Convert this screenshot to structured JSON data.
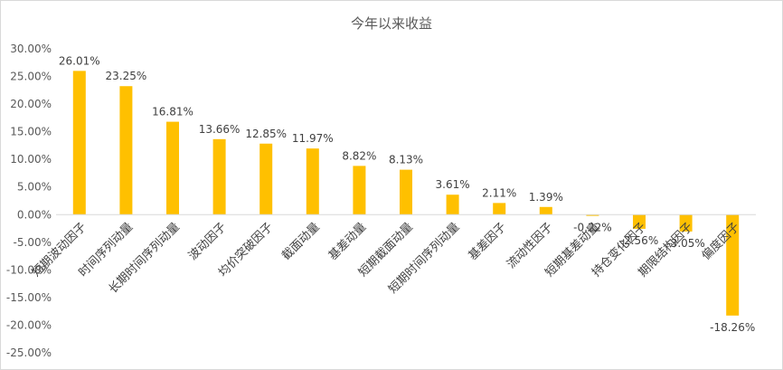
{
  "chart_data": {
    "type": "bar",
    "title": "今年以来收益",
    "categories": [
      "短期波动因子",
      "时间序列动量",
      "长期时间序列动量",
      "波动因子",
      "均价突破因子",
      "截面动量",
      "基差动量",
      "短期截面动量",
      "短期时间序列动量",
      "基差因子",
      "流动性因子",
      "短期基差动量",
      "持仓变化因子",
      "期限结构因子",
      "偏度因子"
    ],
    "values": [
      26.01,
      23.25,
      16.81,
      13.66,
      12.85,
      11.97,
      8.82,
      8.13,
      3.61,
      2.11,
      1.39,
      -0.22,
      -2.56,
      -3.05,
      -18.26
    ],
    "value_labels": [
      "26.01%",
      "23.25%",
      "16.81%",
      "13.66%",
      "12.85%",
      "11.97%",
      "8.82%",
      "8.13%",
      "3.61%",
      "2.11%",
      "1.39%",
      "-0.22%",
      "-2.56%",
      "-3.05%",
      "-18.26%"
    ],
    "y_ticks": [
      "30.00%",
      "25.00%",
      "20.00%",
      "15.00%",
      "10.00%",
      "5.00%",
      "0.00%",
      "-5.00%",
      "-10.00%",
      "-15.00%",
      "-20.00%",
      "-25.00%"
    ],
    "ylim": [
      -25,
      30
    ],
    "grid": false,
    "legend": "none",
    "bar_color": "#FFC000",
    "axis_color": "#d9d9d9"
  }
}
